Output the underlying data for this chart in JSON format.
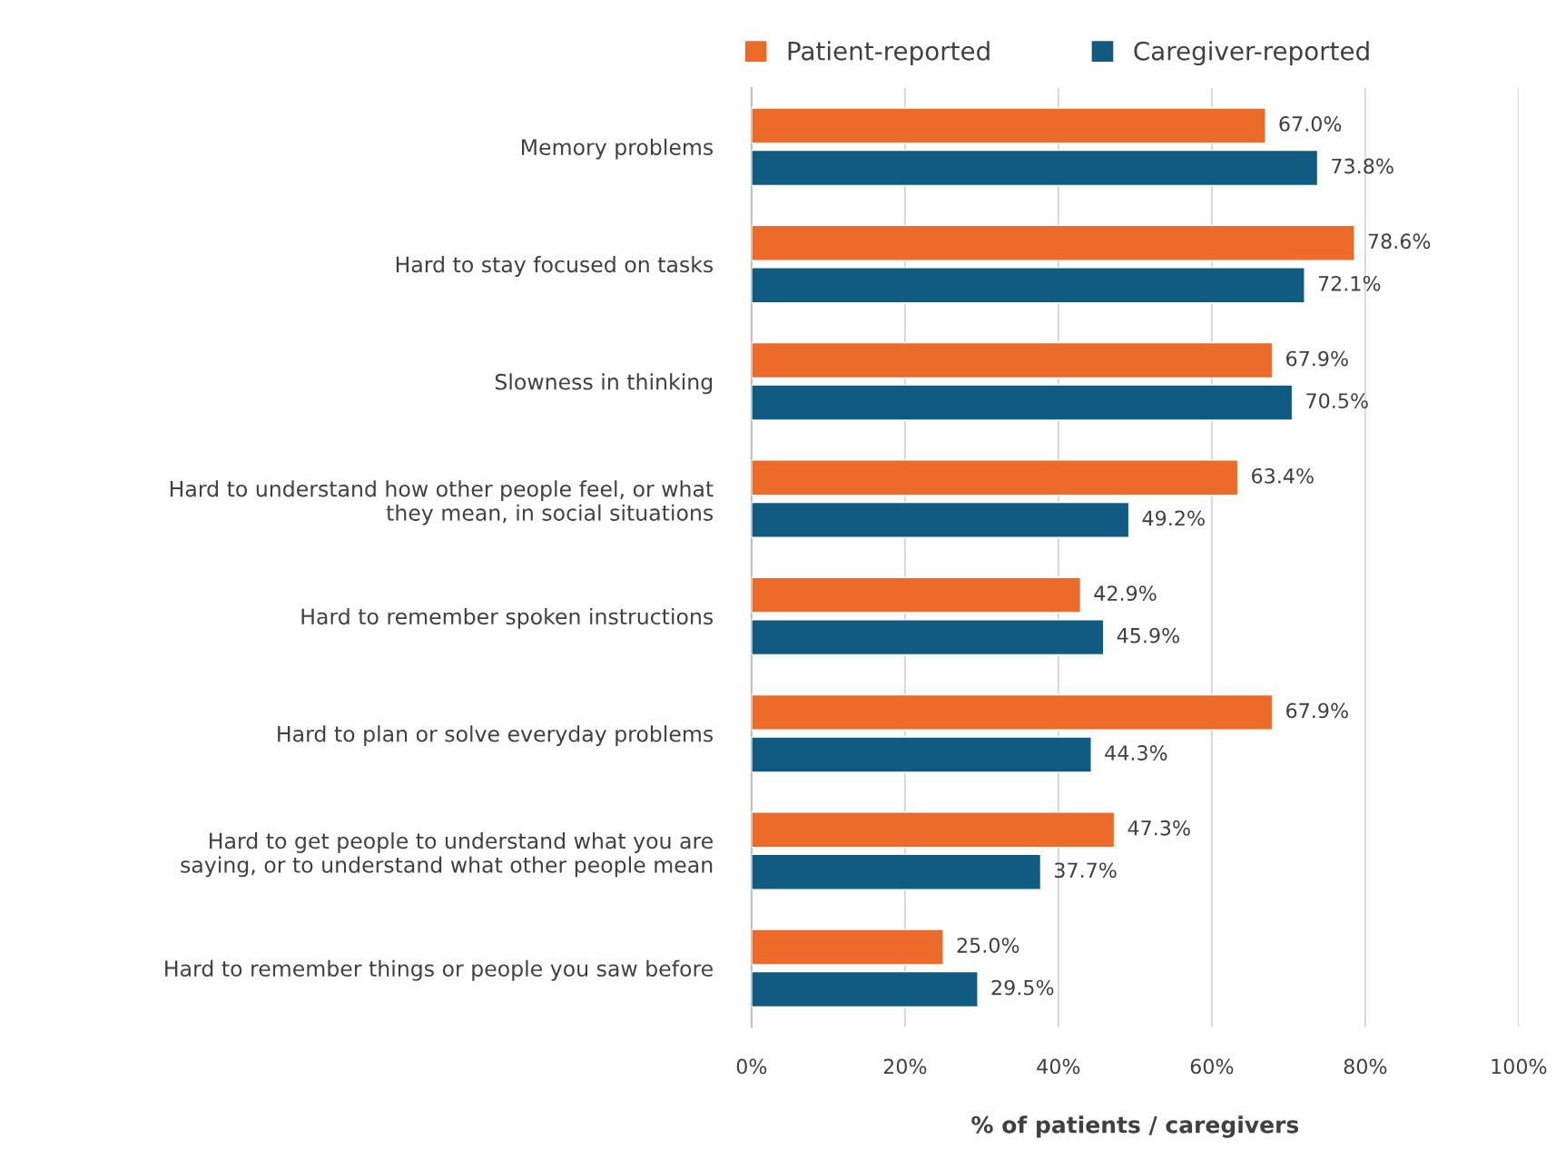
{
  "chart_data": {
    "type": "bar",
    "orientation": "horizontal",
    "xlabel": "% of patients / caregivers",
    "categories": [
      "Memory problems",
      "Hard to stay focused on tasks",
      "Slowness in thinking",
      "Hard to understand how other people feel, or what\nthey mean, in social situations",
      "Hard to remember spoken instructions",
      "Hard to plan or solve everyday problems",
      "Hard to get people to understand what you are\nsaying, or to understand what other people mean",
      "Hard to remember things or people you saw before"
    ],
    "series": [
      {
        "name": "Patient-reported",
        "color": "#ed6b2a",
        "values": [
          67.0,
          78.6,
          67.9,
          63.4,
          42.9,
          67.9,
          47.3,
          25.0
        ],
        "value_labels": [
          "67.0%",
          "78.6%",
          "67.9%",
          "63.4%",
          "42.9%",
          "67.9%",
          "47.3%",
          "25.0%"
        ]
      },
      {
        "name": "Caregiver-reported",
        "color": "#115b82",
        "values": [
          73.8,
          72.1,
          70.5,
          49.2,
          45.9,
          44.3,
          37.7,
          29.5
        ],
        "value_labels": [
          "73.8%",
          "72.1%",
          "70.5%",
          "49.2%",
          "45.9%",
          "44.3%",
          "37.7%",
          "29.5%"
        ]
      }
    ],
    "xlim": [
      0,
      100
    ],
    "xticks": [
      {
        "value": 0,
        "label": "0%"
      },
      {
        "value": 20,
        "label": "20%"
      },
      {
        "value": 40,
        "label": "40%"
      },
      {
        "value": 60,
        "label": "60%"
      },
      {
        "value": 80,
        "label": "80%"
      },
      {
        "value": 100,
        "label": "100%"
      }
    ],
    "grid": "x",
    "legend": "top"
  }
}
